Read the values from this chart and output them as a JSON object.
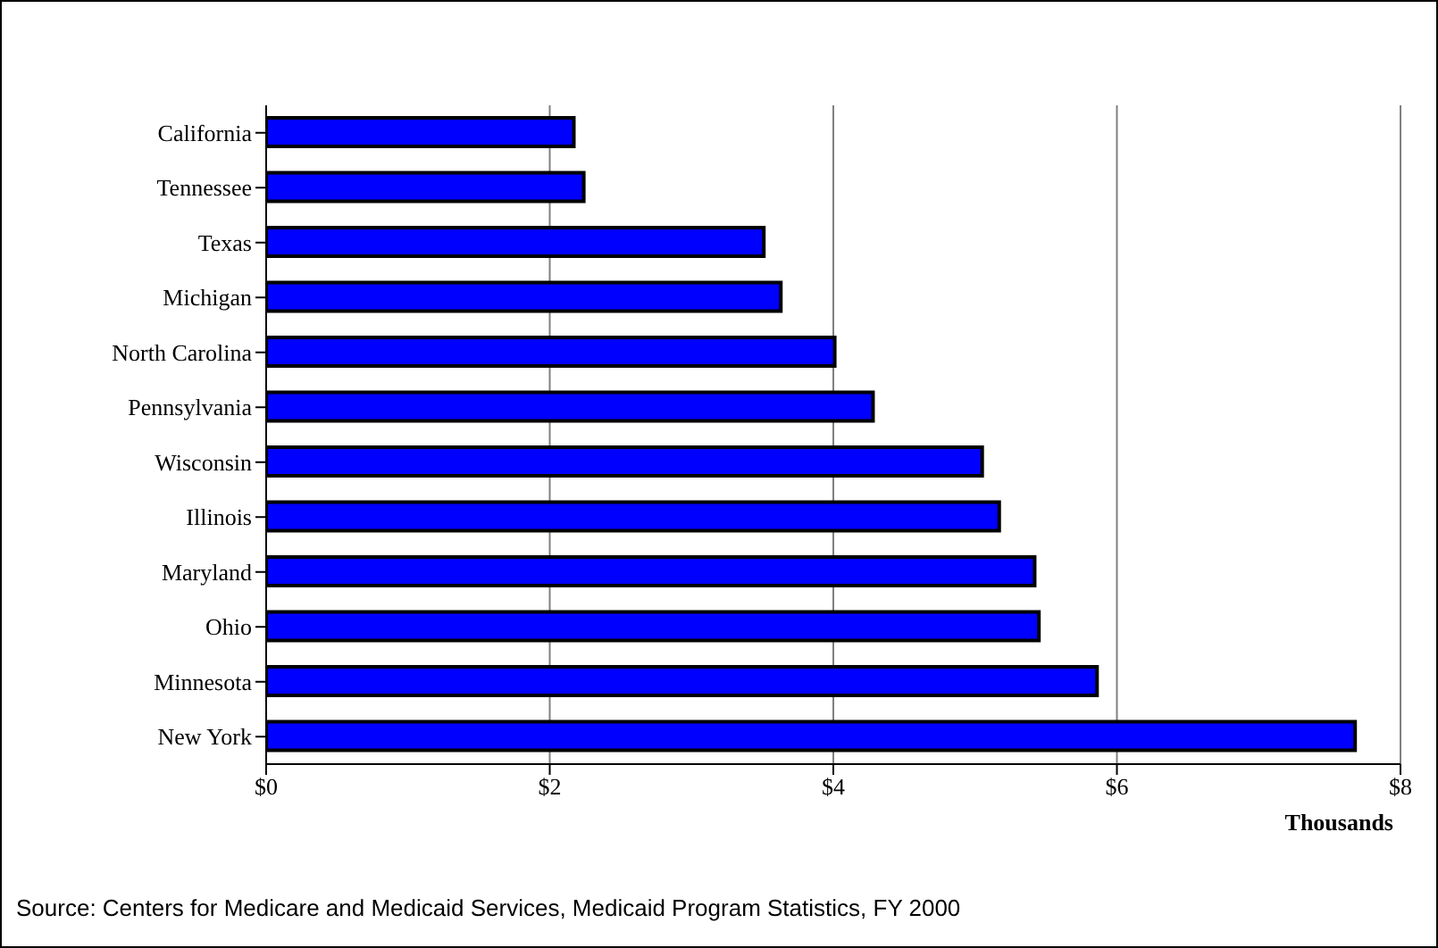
{
  "chart_data": {
    "type": "bar",
    "orientation": "horizontal",
    "categories": [
      "California",
      "Tennessee",
      "Texas",
      "Michigan",
      "North Carolina",
      "Pennsylvania",
      "Wisconsin",
      "Illinois",
      "Maryland",
      "Ohio",
      "Minnesota",
      "New York"
    ],
    "values": [
      2.17,
      2.24,
      3.51,
      3.63,
      4.01,
      4.28,
      5.05,
      5.17,
      5.42,
      5.45,
      5.86,
      7.68
    ],
    "color": "#0000ff",
    "xlim": [
      0,
      8
    ],
    "xticks": [
      {
        "value": 0,
        "label": "$0"
      },
      {
        "value": 2,
        "label": "$2"
      },
      {
        "value": 4,
        "label": "$4"
      },
      {
        "value": 6,
        "label": "$6"
      },
      {
        "value": 8,
        "label": "$8"
      }
    ],
    "xlabel": "Thousands",
    "grid": "x",
    "annotations": [
      "Source:  Centers for Medicare and Medicaid Services, Medicaid Program Statistics, FY 2000"
    ]
  }
}
